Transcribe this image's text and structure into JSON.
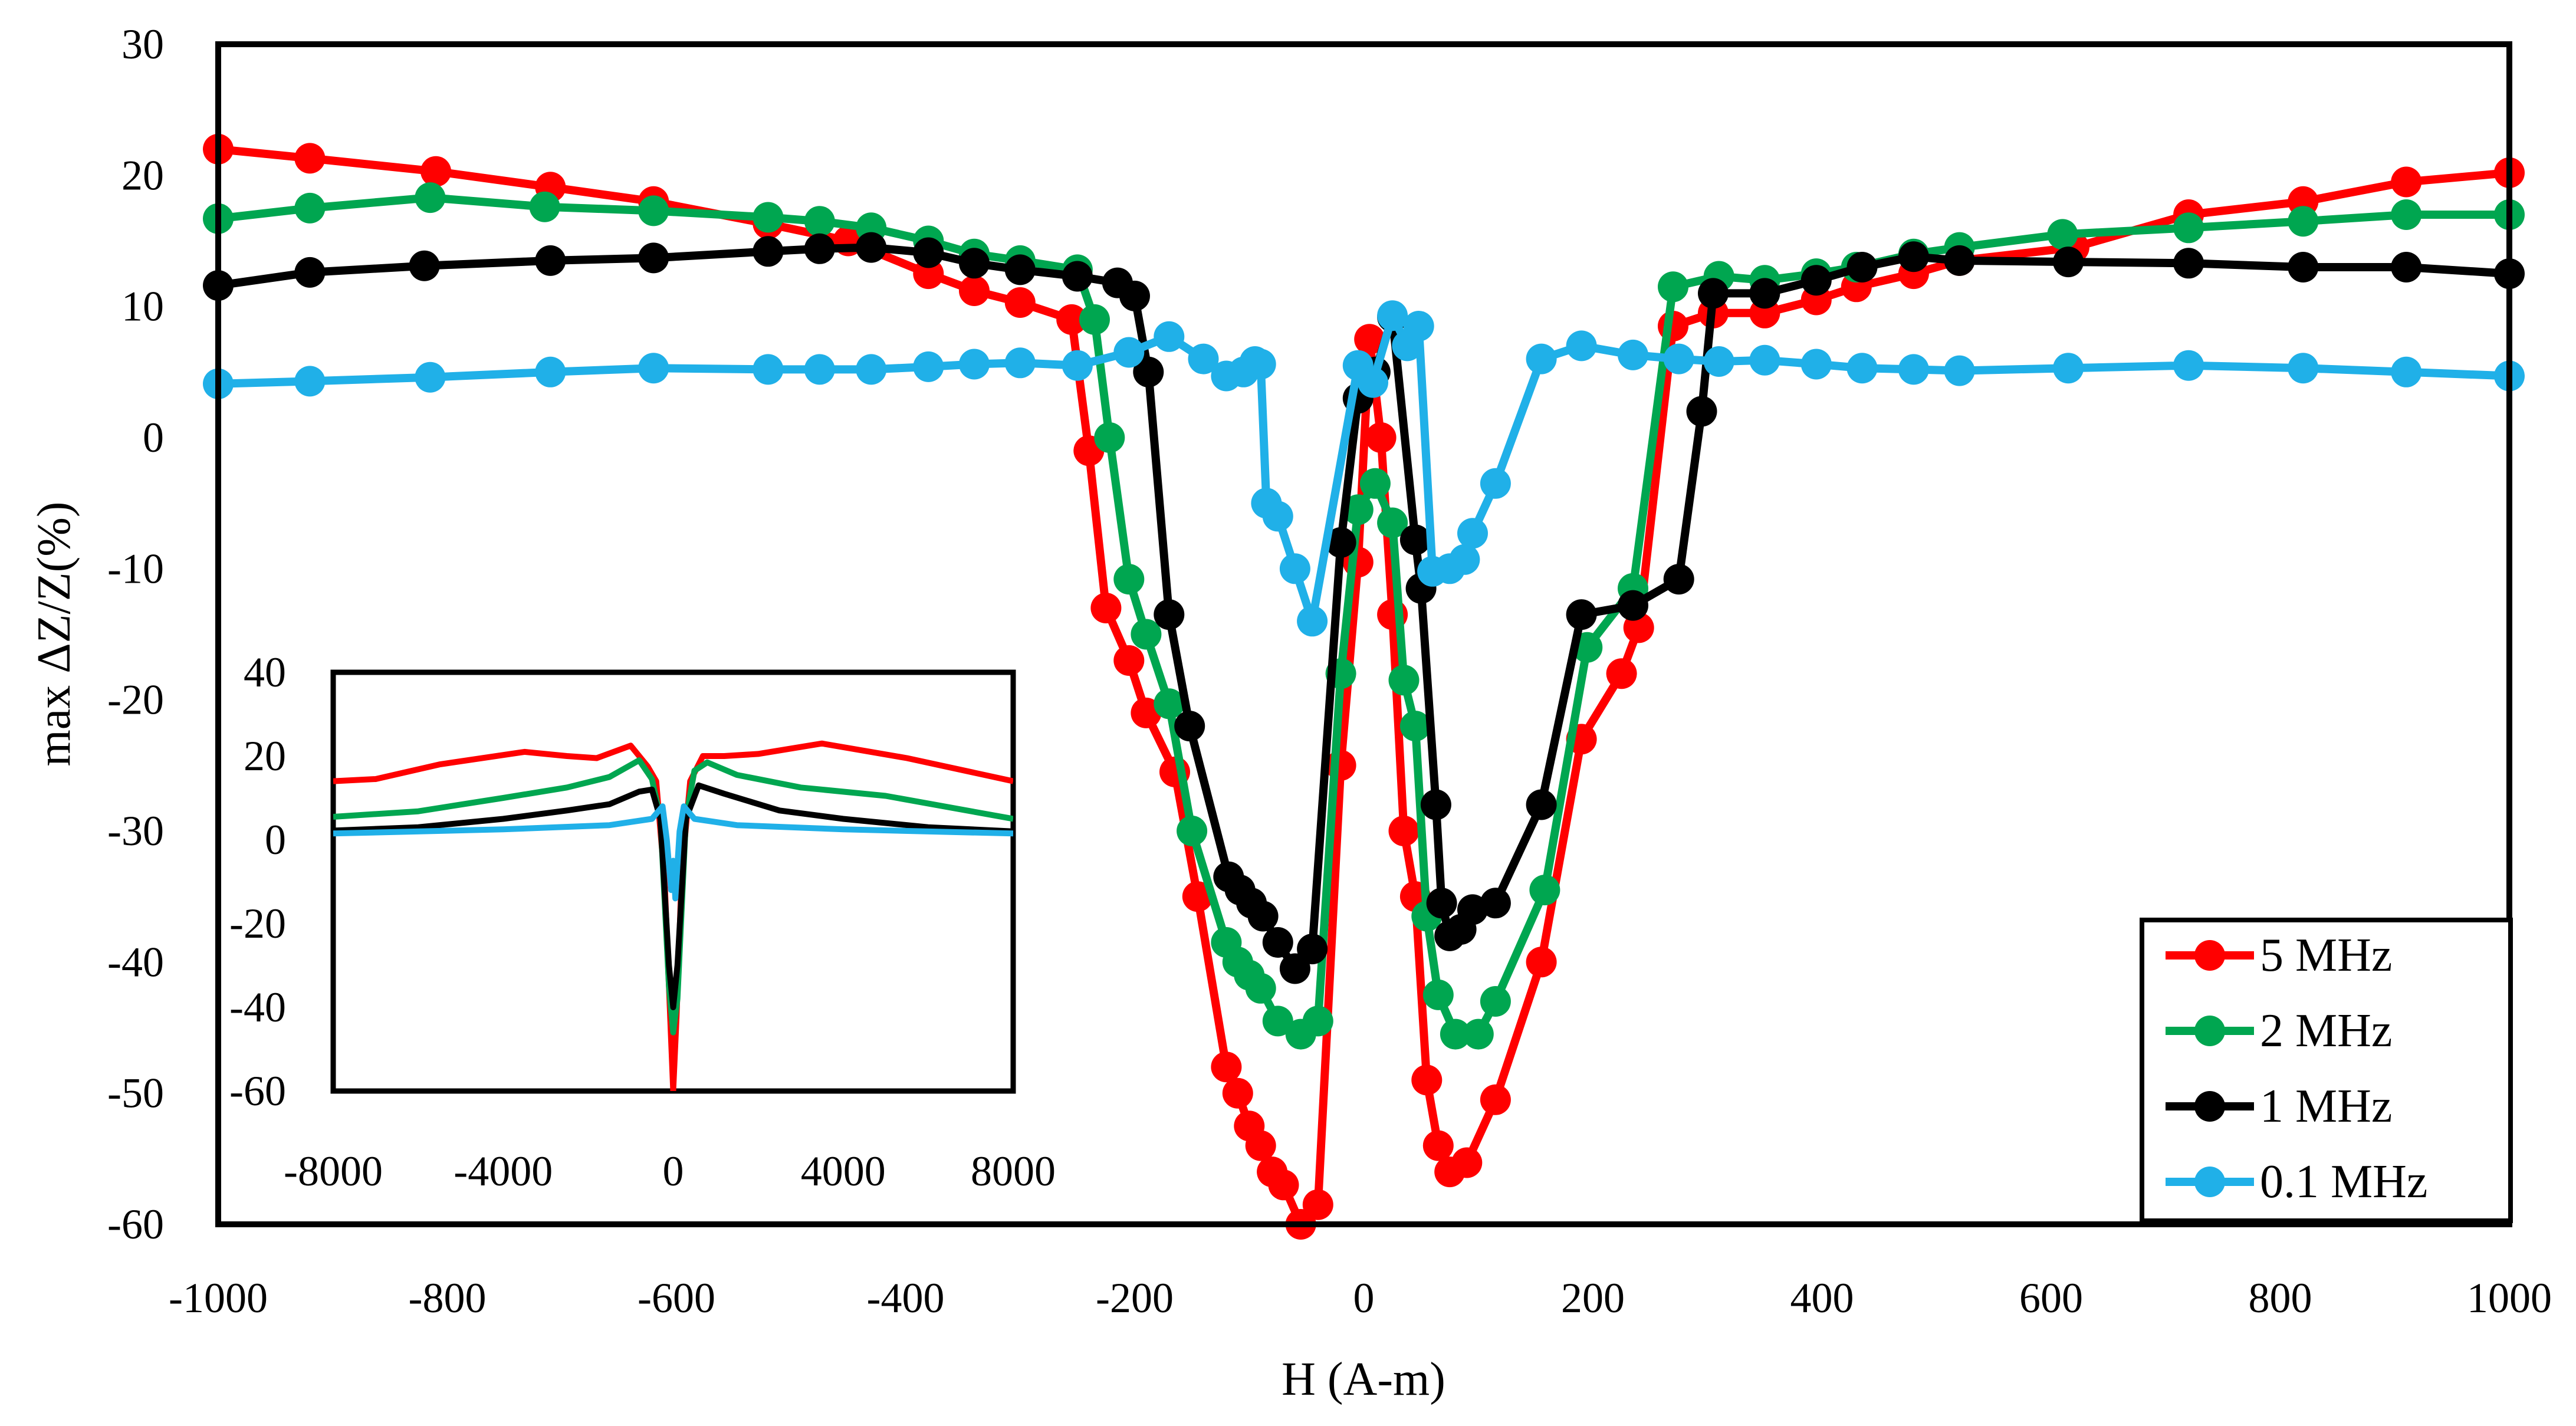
{
  "chart_data": {
    "type": "line",
    "title": "",
    "xlabel": "H (A-m)",
    "ylabel": "max ΔZ/Z(%)",
    "xlim": [
      -1000,
      1000
    ],
    "ylim": [
      -60,
      30
    ],
    "xticks": [
      "-1000",
      "-800",
      "-600",
      "-400",
      "-200",
      "0",
      "200",
      "400",
      "600",
      "800",
      "1000"
    ],
    "yticks": [
      "30",
      "20",
      "10",
      "0",
      "-10",
      "-20",
      "-30",
      "-40",
      "-50",
      "-60"
    ],
    "legend_position": "bottom-right",
    "series": [
      {
        "name": "5 MHz",
        "color": "#ff0000",
        "points": [
          [
            -1000,
            22
          ],
          [
            -920,
            21.3
          ],
          [
            -810,
            20.3
          ],
          [
            -710,
            19.1
          ],
          [
            -620,
            18
          ],
          [
            -520,
            16.3
          ],
          [
            -450,
            15
          ],
          [
            -380,
            12.5
          ],
          [
            -340,
            11.2
          ],
          [
            -300,
            10.3
          ],
          [
            -255,
            9
          ],
          [
            -240,
            -1
          ],
          [
            -225,
            -13
          ],
          [
            -205,
            -17
          ],
          [
            -190,
            -21
          ],
          [
            -165,
            -25.5
          ],
          [
            -145,
            -35
          ],
          [
            -120,
            -48
          ],
          [
            -110,
            -50
          ],
          [
            -100,
            -52.5
          ],
          [
            -90,
            -54
          ],
          [
            -80,
            -56
          ],
          [
            -70,
            -57
          ],
          [
            -55,
            -60
          ],
          [
            -40,
            -58.5
          ],
          [
            -20,
            -25
          ],
          [
            -5,
            -9.5
          ],
          [
            5,
            7.5
          ],
          [
            15,
            0
          ],
          [
            25,
            -13.5
          ],
          [
            35,
            -30
          ],
          [
            45,
            -35
          ],
          [
            55,
            -49
          ],
          [
            65,
            -54
          ],
          [
            75,
            -56
          ],
          [
            90,
            -55.3
          ],
          [
            115,
            -50.5
          ],
          [
            155,
            -40
          ],
          [
            190,
            -23
          ],
          [
            225,
            -18
          ],
          [
            240,
            -14.5
          ],
          [
            270,
            8.5
          ],
          [
            305,
            9.5
          ],
          [
            350,
            9.5
          ],
          [
            395,
            10.5
          ],
          [
            430,
            11.5
          ],
          [
            480,
            12.5
          ],
          [
            520,
            13.5
          ],
          [
            620,
            14.5
          ],
          [
            720,
            17
          ],
          [
            820,
            18
          ],
          [
            910,
            19.5
          ],
          [
            1000,
            20.2
          ]
        ]
      },
      {
        "name": "2 MHz",
        "color": "#00a650",
        "points": [
          [
            -1000,
            16.7
          ],
          [
            -920,
            17.5
          ],
          [
            -815,
            18.3
          ],
          [
            -715,
            17.6
          ],
          [
            -620,
            17.3
          ],
          [
            -520,
            16.8
          ],
          [
            -475,
            16.5
          ],
          [
            -430,
            16
          ],
          [
            -380,
            15
          ],
          [
            -340,
            14
          ],
          [
            -300,
            13.5
          ],
          [
            -250,
            12.8
          ],
          [
            -235,
            9
          ],
          [
            -222,
            0
          ],
          [
            -205,
            -10.8
          ],
          [
            -190,
            -15
          ],
          [
            -170,
            -20.3
          ],
          [
            -150,
            -30
          ],
          [
            -120,
            -38.5
          ],
          [
            -110,
            -40
          ],
          [
            -100,
            -41
          ],
          [
            -90,
            -42
          ],
          [
            -75,
            -44.5
          ],
          [
            -55,
            -45.5
          ],
          [
            -40,
            -44.5
          ],
          [
            -20,
            -18
          ],
          [
            -5,
            -5.5
          ],
          [
            10,
            -3.5
          ],
          [
            25,
            -6.5
          ],
          [
            35,
            -18.5
          ],
          [
            45,
            -22
          ],
          [
            55,
            -36.5
          ],
          [
            65,
            -42.5
          ],
          [
            80,
            -45.5
          ],
          [
            100,
            -45.5
          ],
          [
            115,
            -43
          ],
          [
            158,
            -34.5
          ],
          [
            195,
            -16
          ],
          [
            235,
            -11.5
          ],
          [
            270,
            11.5
          ],
          [
            310,
            12.3
          ],
          [
            350,
            12
          ],
          [
            395,
            12.5
          ],
          [
            430,
            13
          ],
          [
            480,
            14
          ],
          [
            520,
            14.5
          ],
          [
            610,
            15.5
          ],
          [
            720,
            16
          ],
          [
            820,
            16.5
          ],
          [
            910,
            17
          ],
          [
            1000,
            17
          ]
        ]
      },
      {
        "name": "1 MHz",
        "color": "#000000",
        "points": [
          [
            -1000,
            11.6
          ],
          [
            -920,
            12.6
          ],
          [
            -820,
            13.1
          ],
          [
            -710,
            13.5
          ],
          [
            -620,
            13.7
          ],
          [
            -520,
            14.2
          ],
          [
            -475,
            14.4
          ],
          [
            -430,
            14.5
          ],
          [
            -380,
            14.1
          ],
          [
            -340,
            13.3
          ],
          [
            -300,
            12.8
          ],
          [
            -250,
            12.3
          ],
          [
            -215,
            11.8
          ],
          [
            -200,
            10.8
          ],
          [
            -188,
            5
          ],
          [
            -170,
            -13.5
          ],
          [
            -152,
            -22
          ],
          [
            -118,
            -33.5
          ],
          [
            -108,
            -34.5
          ],
          [
            -98,
            -35.5
          ],
          [
            -88,
            -36.5
          ],
          [
            -75,
            -38.5
          ],
          [
            -60,
            -40.5
          ],
          [
            -45,
            -39
          ],
          [
            -20,
            -8
          ],
          [
            -5,
            3
          ],
          [
            10,
            5
          ],
          [
            25,
            9.2
          ],
          [
            45,
            -7.8
          ],
          [
            50,
            -11.5
          ],
          [
            63,
            -28
          ],
          [
            68,
            -35.5
          ],
          [
            75,
            -38
          ],
          [
            85,
            -37.5
          ],
          [
            95,
            -36
          ],
          [
            115,
            -35.5
          ],
          [
            155,
            -28
          ],
          [
            190,
            -13.5
          ],
          [
            235,
            -12.8
          ],
          [
            275,
            -10.8
          ],
          [
            295,
            2
          ],
          [
            305,
            11
          ],
          [
            350,
            11
          ],
          [
            395,
            12
          ],
          [
            435,
            13
          ],
          [
            480,
            13.8
          ],
          [
            520,
            13.5
          ],
          [
            615,
            13.4
          ],
          [
            720,
            13.3
          ],
          [
            820,
            13
          ],
          [
            910,
            13
          ],
          [
            1000,
            12.5
          ]
        ]
      },
      {
        "name": "0.1 MHz",
        "color": "#20b0e8",
        "points": [
          [
            -1000,
            4.1
          ],
          [
            -920,
            4.3
          ],
          [
            -815,
            4.6
          ],
          [
            -710,
            5
          ],
          [
            -620,
            5.3
          ],
          [
            -520,
            5.2
          ],
          [
            -475,
            5.2
          ],
          [
            -430,
            5.2
          ],
          [
            -380,
            5.4
          ],
          [
            -340,
            5.6
          ],
          [
            -300,
            5.7
          ],
          [
            -250,
            5.5
          ],
          [
            -205,
            6.5
          ],
          [
            -170,
            7.7
          ],
          [
            -140,
            6
          ],
          [
            -120,
            4.7
          ],
          [
            -105,
            5
          ],
          [
            -95,
            5.8
          ],
          [
            -90,
            5.6
          ],
          [
            -85,
            -5
          ],
          [
            -75,
            -6
          ],
          [
            -60,
            -10
          ],
          [
            -45,
            -14
          ],
          [
            -5,
            5.5
          ],
          [
            8,
            4.2
          ],
          [
            25,
            9.3
          ],
          [
            38,
            7
          ],
          [
            48,
            8.5
          ],
          [
            60,
            -10.2
          ],
          [
            75,
            -10
          ],
          [
            88,
            -9.3
          ],
          [
            95,
            -7.3
          ],
          [
            115,
            -3.5
          ],
          [
            155,
            6
          ],
          [
            190,
            7
          ],
          [
            235,
            6.3
          ],
          [
            275,
            6
          ],
          [
            310,
            5.8
          ],
          [
            350,
            5.9
          ],
          [
            395,
            5.6
          ],
          [
            435,
            5.3
          ],
          [
            480,
            5.2
          ],
          [
            520,
            5.1
          ],
          [
            615,
            5.3
          ],
          [
            720,
            5.5
          ],
          [
            820,
            5.3
          ],
          [
            910,
            5
          ],
          [
            1000,
            4.7
          ]
        ]
      }
    ],
    "inset": {
      "xlim": [
        -8000,
        8000
      ],
      "ylim": [
        -60,
        40
      ],
      "xticks": [
        "-8000",
        "-4000",
        "0",
        "4000",
        "8000"
      ],
      "yticks": [
        "40",
        "20",
        "0",
        "-20",
        "-40",
        "-60"
      ],
      "series": [
        {
          "name": "5 MHz",
          "color": "#ff0000",
          "points": [
            [
              -8000,
              14
            ],
            [
              -7000,
              14.5
            ],
            [
              -5500,
              18
            ],
            [
              -3500,
              21
            ],
            [
              -2500,
              20
            ],
            [
              -1800,
              19.5
            ],
            [
              -1000,
              22.5
            ],
            [
              -600,
              17.5
            ],
            [
              -400,
              14
            ],
            [
              -200,
              -10
            ],
            [
              -80,
              -40
            ],
            [
              0,
              -60
            ],
            [
              80,
              -42
            ],
            [
              200,
              -8
            ],
            [
              400,
              14
            ],
            [
              700,
              20
            ],
            [
              1200,
              20
            ],
            [
              2000,
              20.5
            ],
            [
              3500,
              23
            ],
            [
              5500,
              19.5
            ],
            [
              8000,
              14
            ]
          ]
        },
        {
          "name": "2 MHz",
          "color": "#00a650",
          "points": [
            [
              -8000,
              5.5
            ],
            [
              -6000,
              6.8
            ],
            [
              -4000,
              10
            ],
            [
              -2500,
              12.5
            ],
            [
              -1500,
              15
            ],
            [
              -800,
              19
            ],
            [
              -500,
              14.5
            ],
            [
              -300,
              5
            ],
            [
              -100,
              -35
            ],
            [
              0,
              -46
            ],
            [
              100,
              -38
            ],
            [
              300,
              5
            ],
            [
              500,
              16.5
            ],
            [
              800,
              18.5
            ],
            [
              1500,
              15.5
            ],
            [
              3000,
              12.5
            ],
            [
              5000,
              10.5
            ],
            [
              8000,
              5
            ]
          ]
        },
        {
          "name": "1 MHz",
          "color": "#000000",
          "points": [
            [
              -8000,
              2.2
            ],
            [
              -6000,
              3
            ],
            [
              -4000,
              5
            ],
            [
              -2500,
              7
            ],
            [
              -1500,
              8.5
            ],
            [
              -800,
              11.5
            ],
            [
              -500,
              12
            ],
            [
              -300,
              5
            ],
            [
              -100,
              -30
            ],
            [
              0,
              -40
            ],
            [
              100,
              -30
            ],
            [
              300,
              5
            ],
            [
              600,
              13
            ],
            [
              1200,
              11
            ],
            [
              2500,
              7
            ],
            [
              4000,
              5
            ],
            [
              6000,
              3
            ],
            [
              8000,
              2
            ]
          ]
        },
        {
          "name": "0.1 MHz",
          "color": "#20b0e8",
          "points": [
            [
              -8000,
              1.5
            ],
            [
              -4000,
              2.5
            ],
            [
              -1500,
              3.5
            ],
            [
              -500,
              5
            ],
            [
              -250,
              8
            ],
            [
              -150,
              0
            ],
            [
              -50,
              -12
            ],
            [
              0,
              -5
            ],
            [
              50,
              -14
            ],
            [
              150,
              2
            ],
            [
              250,
              8
            ],
            [
              500,
              5
            ],
            [
              1500,
              3.5
            ],
            [
              4000,
              2.5
            ],
            [
              8000,
              1.5
            ]
          ]
        }
      ]
    }
  }
}
